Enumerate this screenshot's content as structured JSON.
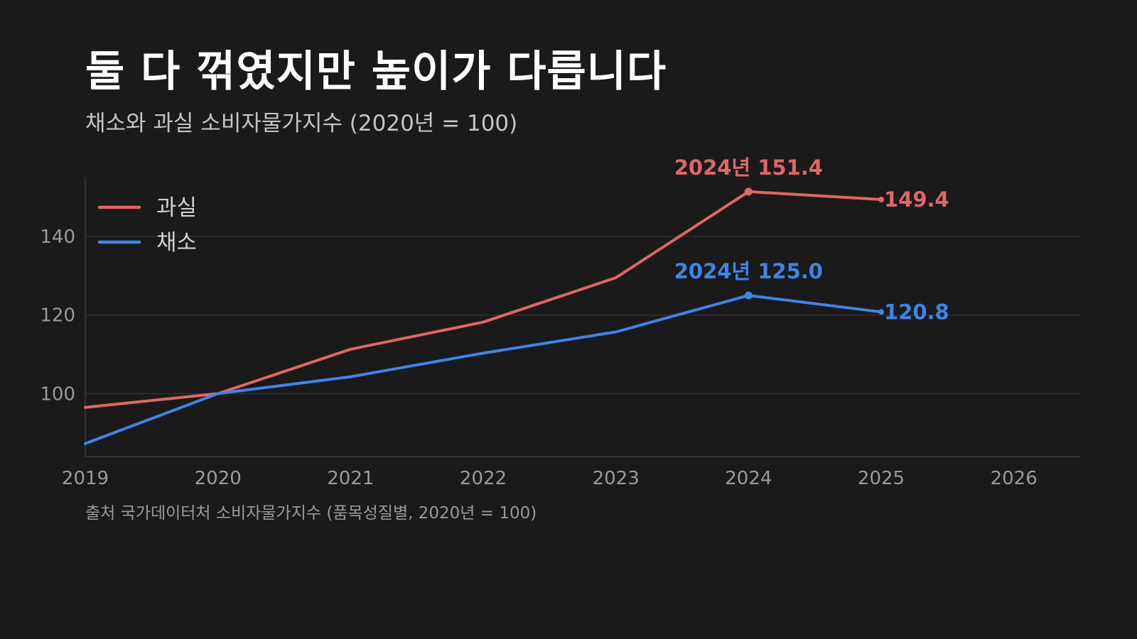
{
  "header": {
    "title": "둘 다 꺾였지만 높이가 다릅니다",
    "subtitle": "채소와 과실 소비자물가지수 (2020년 = 100)"
  },
  "footer": {
    "source": "출처 국가데이터처 소비자물가지수 (품목성질별, 2020년 = 100)"
  },
  "chart_data": {
    "type": "line",
    "title": "둘 다 꺾였지만 높이가 다릅니다",
    "subtitle": "채소와 과실 소비자물가지수 (2020년 = 100)",
    "x": [
      2019,
      2020,
      2021,
      2022,
      2023,
      2024,
      2025
    ],
    "xlim": [
      2019,
      2026.5
    ],
    "ylim": [
      84,
      155
    ],
    "x_ticks": [
      2019,
      2020,
      2021,
      2022,
      2023,
      2024,
      2025,
      2026
    ],
    "y_ticks": [
      100,
      120,
      140
    ],
    "grid": "horizontal",
    "legend_position": "top-left",
    "series": [
      {
        "name": "과실",
        "color": "#e06666",
        "values": [
          96.5,
          100.0,
          111.3,
          118.2,
          129.5,
          151.4,
          149.4
        ],
        "peak_label": "2024년 151.4",
        "end_label": "149.4"
      },
      {
        "name": "채소",
        "color": "#3d85e6",
        "values": [
          87.3,
          100.0,
          104.3,
          110.3,
          115.7,
          125.0,
          120.8
        ],
        "peak_label": "2024년 125.0",
        "end_label": "120.8"
      }
    ]
  }
}
